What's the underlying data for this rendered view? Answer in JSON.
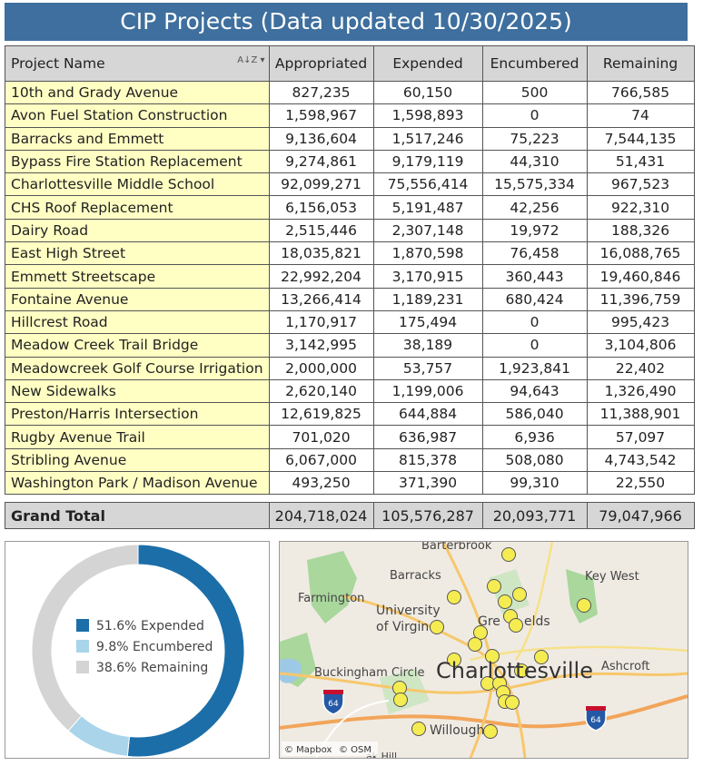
{
  "title": "CIP Projects (Data updated 10/30/2025)",
  "table": {
    "columns": [
      "Project Name",
      "Appropriated",
      "Expended",
      "Encumbered",
      "Remaining"
    ],
    "rows": [
      [
        "10th and Grady Avenue",
        "827,235",
        "60,150",
        "500",
        "766,585"
      ],
      [
        "Avon Fuel Station Construction",
        "1,598,967",
        "1,598,893",
        "0",
        "74"
      ],
      [
        "Barracks and Emmett",
        "9,136,604",
        "1,517,246",
        "75,223",
        "7,544,135"
      ],
      [
        "Bypass Fire Station Replacement",
        "9,274,861",
        "9,179,119",
        "44,310",
        "51,431"
      ],
      [
        "Charlottesville Middle School",
        "92,099,271",
        "75,556,414",
        "15,575,334",
        "967,523"
      ],
      [
        "CHS Roof Replacement",
        "6,156,053",
        "5,191,487",
        "42,256",
        "922,310"
      ],
      [
        "Dairy Road",
        "2,515,446",
        "2,307,148",
        "19,972",
        "188,326"
      ],
      [
        "East High Street",
        "18,035,821",
        "1,870,598",
        "76,458",
        "16,088,765"
      ],
      [
        "Emmett Streetscape",
        "22,992,204",
        "3,170,915",
        "360,443",
        "19,460,846"
      ],
      [
        "Fontaine Avenue",
        "13,266,414",
        "1,189,231",
        "680,424",
        "11,396,759"
      ],
      [
        "Hillcrest Road",
        "1,170,917",
        "175,494",
        "0",
        "995,423"
      ],
      [
        "Meadow Creek Trail Bridge",
        "3,142,995",
        "38,189",
        "0",
        "3,104,806"
      ],
      [
        "Meadowcreek Golf Course Irrigation",
        "2,000,000",
        "53,757",
        "1,923,841",
        "22,402"
      ],
      [
        "New Sidewalks",
        "2,620,140",
        "1,199,006",
        "94,643",
        "1,326,490"
      ],
      [
        "Preston/Harris Intersection",
        "12,619,825",
        "644,884",
        "586,040",
        "11,388,901"
      ],
      [
        "Rugby Avenue Trail",
        "701,020",
        "636,987",
        "6,936",
        "57,097"
      ],
      [
        "Stribling Avenue",
        "6,067,000",
        "815,378",
        "508,080",
        "4,743,542"
      ],
      [
        "Washington Park / Madison Avenue",
        "493,250",
        "371,390",
        "99,310",
        "22,550"
      ]
    ],
    "total": [
      "Grand Total",
      "204,718,024",
      "105,576,287",
      "20,093,771",
      "79,047,966"
    ]
  },
  "chart_data": {
    "type": "donut",
    "categories": [
      "Expended",
      "Encumbered",
      "Remaining"
    ],
    "values": [
      51.6,
      9.8,
      38.6
    ],
    "value_labels": [
      "51.6%",
      "9.8%",
      "38.6%"
    ],
    "colors": [
      "#1c6ea8",
      "#a9d4ea",
      "#d4d4d4"
    ]
  },
  "map": {
    "labels": [
      "Barterbrook",
      "Barracks",
      "Key West",
      "Farmington",
      "University",
      "of Virgin",
      "Gre",
      "elds",
      "Buckingham Circle",
      "Charlottesville",
      "Ashcroft",
      "Willough",
      "ak Hill"
    ],
    "shields": [
      "64",
      "64"
    ],
    "attribution": [
      "© Mapbox",
      "© OSM"
    ]
  }
}
